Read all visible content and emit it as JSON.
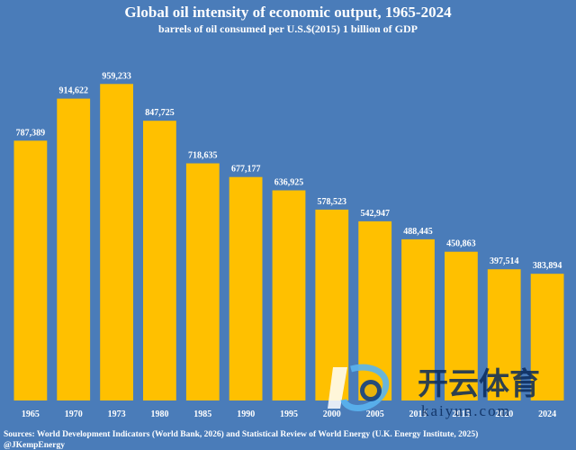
{
  "colors": {
    "background": "#4a7cb9",
    "bar": "#ffc000",
    "text": "#ffffff"
  },
  "chart_data": {
    "type": "bar",
    "title": "Global oil intensity of economic output, 1965-2024",
    "subtitle": "barrels of oil consumed per U.S.$(2015) 1 billion of GDP",
    "categories": [
      "1965",
      "1970",
      "1973",
      "1980",
      "1985",
      "1990",
      "1995",
      "2000",
      "2005",
      "2010",
      "2015",
      "2020",
      "2024"
    ],
    "values": [
      787389,
      914622,
      959233,
      847725,
      718635,
      677177,
      636925,
      578523,
      542947,
      488445,
      450863,
      397514,
      383894
    ],
    "value_labels": [
      "787,389",
      "914,622",
      "959,233",
      "847,725",
      "718,635",
      "677,177",
      "636,925",
      "578,523",
      "542,947",
      "488,445",
      "450,863",
      "397,514",
      "383,894"
    ],
    "ylim": [
      0,
      1050000
    ],
    "grid": false,
    "legend": "none"
  },
  "footer": {
    "source": "Sources: World Development Indicators (World Bank, 2026) and Statistical Review of World Energy (U.K. Energy Institute, 2025)",
    "handle": "@JKempEnergy"
  },
  "watermark": {
    "text": "开云体育",
    "url": "kaiyun.com",
    "icon": "kaiyun-logo-icon"
  }
}
